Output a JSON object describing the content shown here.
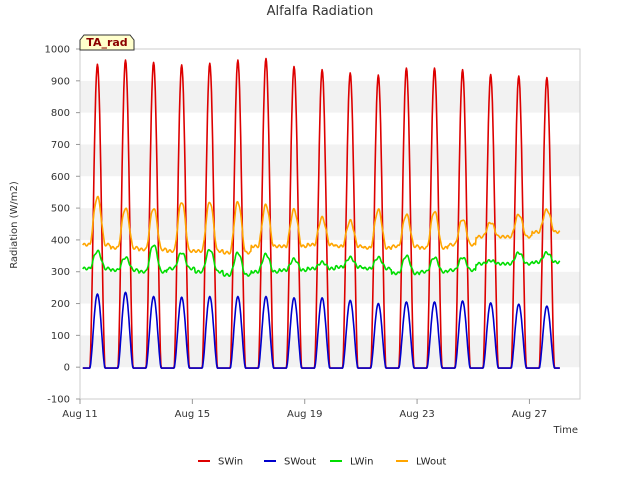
{
  "chart_data": {
    "type": "line",
    "title": "Alfalfa Radiation",
    "xlabel": "Time",
    "ylabel": "Radiation (W/m2)",
    "badge": "TA_rad",
    "ylim": [
      -100,
      1000
    ],
    "yticks": [
      -100,
      0,
      100,
      200,
      300,
      400,
      500,
      600,
      700,
      800,
      900,
      1000
    ],
    "xlim_days": [
      11,
      28.8
    ],
    "xticks": [
      {
        "day": 11,
        "label": "Aug 11"
      },
      {
        "day": 15,
        "label": "Aug 15"
      },
      {
        "day": 19,
        "label": "Aug 19"
      },
      {
        "day": 23,
        "label": "Aug 23"
      },
      {
        "day": 27,
        "label": "Aug 27"
      }
    ],
    "legend_position": "bottom-center",
    "grid": "alternating horizontal bands",
    "series": [
      {
        "name": "SWin",
        "color": "#dd0000",
        "days": [
          11,
          12,
          13,
          14,
          15,
          16,
          17,
          18,
          19,
          20,
          21,
          22,
          23,
          24,
          25,
          26,
          27,
          28
        ],
        "night": -3,
        "daily_peak": [
          952,
          965,
          958,
          950,
          955,
          965,
          970,
          945,
          935,
          925,
          918,
          940,
          940,
          935,
          920,
          915,
          910
        ]
      },
      {
        "name": "SWout",
        "color": "#0000cc",
        "days": [
          11,
          12,
          13,
          14,
          15,
          16,
          17,
          18,
          19,
          20,
          21,
          22,
          23,
          24,
          25,
          26,
          27,
          28
        ],
        "night": -3,
        "daily_peak": [
          230,
          235,
          222,
          220,
          222,
          222,
          222,
          218,
          218,
          210,
          200,
          205,
          205,
          208,
          202,
          198,
          192
        ]
      },
      {
        "name": "LWin",
        "color": "#00dd00",
        "days": [
          11,
          12,
          13,
          14,
          15,
          16,
          17,
          18,
          19,
          20,
          21,
          22,
          23,
          24,
          25,
          26,
          27,
          28
        ],
        "daily_min": [
          310,
          305,
          300,
          310,
          300,
          290,
          300,
          305,
          310,
          315,
          310,
          295,
          300,
          305,
          325,
          325,
          330
        ],
        "daily_peak": [
          365,
          345,
          385,
          360,
          370,
          360,
          355,
          340,
          330,
          345,
          345,
          350,
          345,
          345,
          335,
          360,
          360
        ]
      },
      {
        "name": "LWout",
        "color": "#ffa500",
        "days": [
          11,
          12,
          13,
          14,
          15,
          16,
          17,
          18,
          19,
          20,
          21,
          22,
          23,
          24,
          25,
          26,
          27,
          28
        ],
        "daily_min": [
          385,
          375,
          370,
          365,
          365,
          360,
          380,
          380,
          385,
          380,
          375,
          380,
          375,
          385,
          410,
          410,
          425
        ],
        "daily_peak": [
          535,
          500,
          500,
          520,
          520,
          520,
          510,
          495,
          470,
          460,
          495,
          480,
          490,
          465,
          455,
          480,
          495
        ]
      }
    ]
  }
}
